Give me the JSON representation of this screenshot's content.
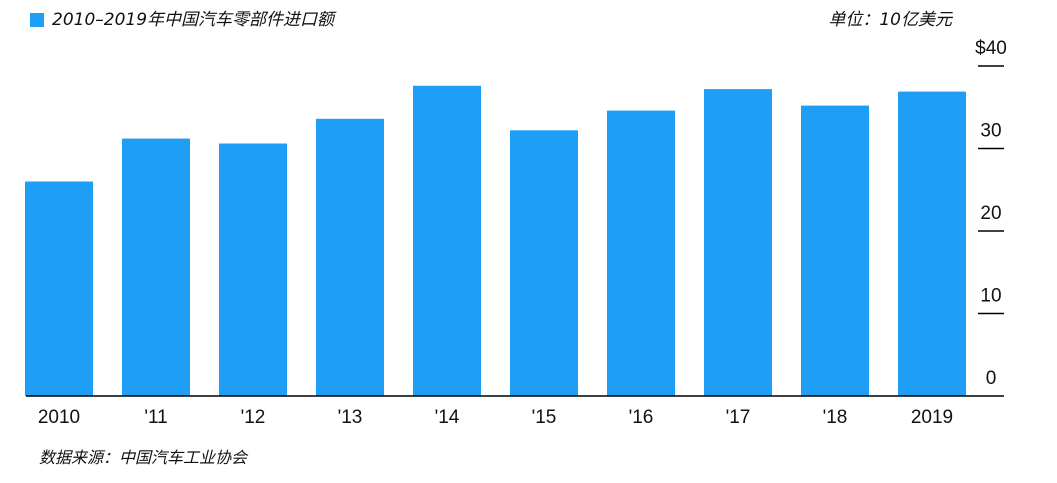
{
  "colors": {
    "bar": "#1E9EF5",
    "axis": "#000000",
    "text": "#111111"
  },
  "legend": {
    "label": "2010–2019年中国汽车零部件进口额"
  },
  "unit_label": "单位：10亿美元",
  "source": "数据来源：中国汽车工业协会",
  "chart_data": {
    "type": "bar",
    "categories": [
      "2010",
      "'11",
      "'12",
      "'13",
      "'14",
      "'15",
      "'16",
      "'17",
      "'18",
      "2019"
    ],
    "series": [
      {
        "name": "2010–2019年中国汽车零部件进口额",
        "values": [
          26.0,
          31.2,
          30.6,
          33.6,
          37.6,
          32.2,
          34.6,
          37.2,
          35.2,
          36.9
        ]
      }
    ],
    "ylim": [
      0,
      40
    ],
    "yticks": [
      0,
      10,
      20,
      30,
      40
    ],
    "ytick_labels": [
      "0",
      "10",
      "20",
      "30",
      "$40"
    ],
    "y_axis_side": "right",
    "grid": false,
    "legend_position": "top-left"
  }
}
